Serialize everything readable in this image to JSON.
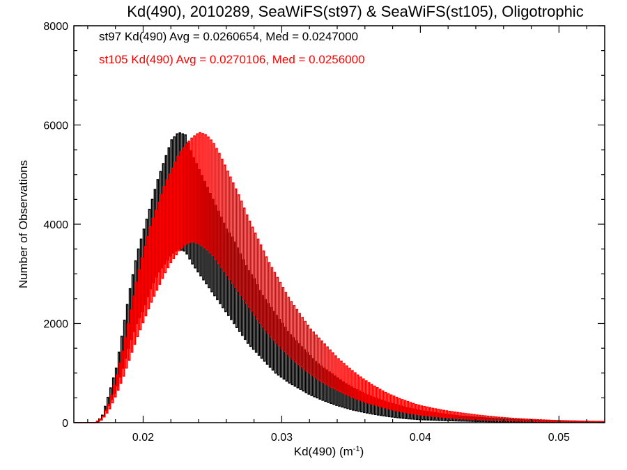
{
  "chart_data": {
    "type": "line",
    "title": "Kd(490), 2010289, SeaWiFS(st97) & SeaWiFS(st105), Oligotrophic",
    "xlabel_main": "Kd(490) (m",
    "xlabel_sup": "-1",
    "xlabel_end": ")",
    "ylabel": "Number of Observations",
    "xlim": [
      0.015,
      0.0533
    ],
    "ylim": [
      0,
      8000
    ],
    "x_ticks": [
      0.02,
      0.03,
      0.04,
      0.05
    ],
    "x_tick_labels": [
      "0.02",
      "0.03",
      "0.04",
      "0.05"
    ],
    "y_ticks": [
      0,
      2000,
      4000,
      6000,
      8000
    ],
    "y_tick_labels": [
      "0",
      "2000",
      "4000",
      "6000",
      "8000"
    ],
    "annotations": [
      {
        "text": "st97 Kd(490) Avg = 0.0260654, Med = 0.0247000",
        "color": "#000000"
      },
      {
        "text": "st105 Kd(490) Avg = 0.0270106, Med = 0.0256000",
        "color": "#ff0000"
      }
    ],
    "series": [
      {
        "color": "#000000",
        "style": "histogram-step",
        "x": [
          0.015,
          0.016,
          0.0166,
          0.017,
          0.0175,
          0.018,
          0.0185,
          0.019,
          0.0195,
          0.02,
          0.0205,
          0.021,
          0.0215,
          0.022,
          0.0225,
          0.023,
          0.0235,
          0.024,
          0.0245,
          0.025,
          0.0255,
          0.026,
          0.0265,
          0.027,
          0.0275,
          0.028,
          0.0285,
          0.029,
          0.0295,
          0.03,
          0.0305,
          0.031,
          0.0315,
          0.032,
          0.0325,
          0.033,
          0.0335,
          0.034,
          0.0345,
          0.035,
          0.0355,
          0.036,
          0.0365,
          0.037,
          0.0375,
          0.038,
          0.0385,
          0.039,
          0.0395,
          0.04,
          0.041,
          0.042,
          0.043,
          0.044,
          0.045,
          0.046,
          0.047,
          0.048,
          0.049,
          0.05,
          0.051,
          0.052,
          0.0533
        ],
        "hi": [
          0,
          0,
          0,
          150,
          600,
          1100,
          1900,
          2700,
          3400,
          3900,
          4400,
          4900,
          5300,
          5700,
          5850,
          5800,
          5400,
          5100,
          4800,
          4500,
          4200,
          3900,
          3700,
          3400,
          3100,
          2900,
          2600,
          2400,
          2200,
          2000,
          1800,
          1650,
          1500,
          1350,
          1200,
          1100,
          1000,
          900,
          800,
          720,
          650,
          580,
          520,
          470,
          420,
          380,
          340,
          300,
          270,
          240,
          200,
          160,
          130,
          110,
          90,
          75,
          60,
          50,
          40,
          35,
          30,
          25,
          20
        ],
        "lo": [
          0,
          0,
          0,
          80,
          350,
          650,
          1100,
          1600,
          2000,
          2300,
          2700,
          3000,
          3200,
          3400,
          3500,
          3450,
          3200,
          3000,
          2800,
          2600,
          2400,
          2200,
          2000,
          1800,
          1600,
          1450,
          1300,
          1150,
          1000,
          900,
          800,
          720,
          640,
          560,
          500,
          440,
          390,
          340,
          300,
          260,
          230,
          200,
          175,
          150,
          130,
          110,
          95,
          80,
          70,
          60,
          50,
          40,
          32,
          26,
          20,
          16,
          12,
          10,
          8,
          6,
          5,
          4,
          3
        ]
      },
      {
        "color": "#ff0000",
        "style": "histogram-step",
        "x": [
          0.015,
          0.0165,
          0.017,
          0.0175,
          0.018,
          0.0185,
          0.019,
          0.0195,
          0.02,
          0.0205,
          0.021,
          0.0215,
          0.022,
          0.0225,
          0.023,
          0.0235,
          0.024,
          0.0245,
          0.025,
          0.0255,
          0.026,
          0.0265,
          0.027,
          0.0275,
          0.028,
          0.0285,
          0.029,
          0.0295,
          0.03,
          0.0305,
          0.031,
          0.0315,
          0.032,
          0.0325,
          0.033,
          0.0335,
          0.034,
          0.0345,
          0.035,
          0.0355,
          0.036,
          0.0365,
          0.037,
          0.0375,
          0.038,
          0.0385,
          0.039,
          0.0395,
          0.04,
          0.041,
          0.042,
          0.043,
          0.044,
          0.045,
          0.046,
          0.047,
          0.048,
          0.049,
          0.05,
          0.051,
          0.052,
          0.0533
        ],
        "hi": [
          0,
          0,
          100,
          400,
          900,
          1500,
          2200,
          2900,
          3500,
          4000,
          4400,
          4800,
          5100,
          5400,
          5600,
          5750,
          5850,
          5800,
          5650,
          5400,
          5100,
          4800,
          4500,
          4150,
          3850,
          3550,
          3250,
          3000,
          2750,
          2500,
          2300,
          2100,
          1900,
          1750,
          1600,
          1450,
          1300,
          1180,
          1060,
          950,
          850,
          760,
          680,
          600,
          540,
          480,
          430,
          380,
          340,
          280,
          230,
          190,
          155,
          125,
          100,
          80,
          65,
          52,
          42,
          34,
          27,
          22
        ],
        "lo": [
          0,
          0,
          60,
          250,
          550,
          900,
          1300,
          1700,
          2050,
          2400,
          2700,
          3000,
          3250,
          3450,
          3600,
          3650,
          3600,
          3500,
          3350,
          3150,
          2950,
          2750,
          2550,
          2350,
          2150,
          1950,
          1780,
          1620,
          1480,
          1340,
          1210,
          1100,
          990,
          890,
          800,
          720,
          650,
          580,
          520,
          460,
          410,
          370,
          330,
          290,
          255,
          225,
          200,
          175,
          155,
          125,
          100,
          80,
          65,
          52,
          42,
          34,
          27,
          22,
          18,
          14,
          11,
          9
        ]
      }
    ]
  }
}
